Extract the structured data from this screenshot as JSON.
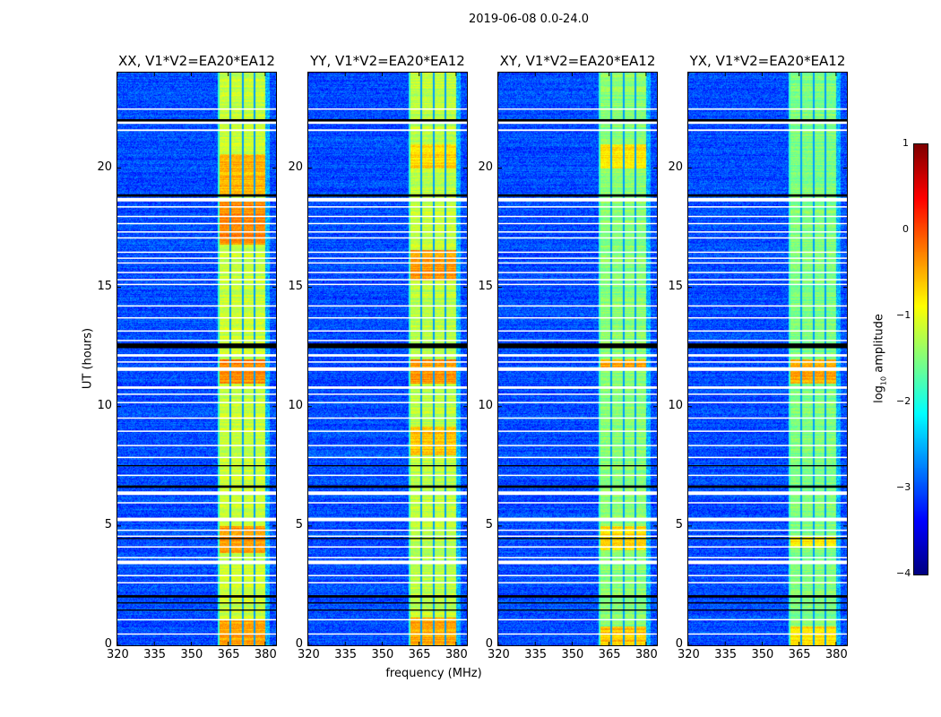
{
  "chart_data": {
    "type": "heatmap",
    "title": "2019-06-08 0.0-24.0",
    "xlabel": "frequency (MHz)",
    "ylabel": "UT (hours)",
    "xlim": [
      320,
      384.4
    ],
    "ylim": [
      0,
      24
    ],
    "xticks": [
      320,
      335,
      350,
      365,
      380
    ],
    "yticks": [
      0,
      5,
      10,
      15,
      20
    ],
    "colorbar": {
      "label_main": "log",
      "label_sub": "10",
      "label_rest": " amplitude",
      "range": [
        -4,
        1
      ],
      "ticks": [
        1,
        0,
        -1,
        -2,
        -3,
        -4
      ],
      "tick_labels": [
        "1",
        "0",
        "−1",
        "−2",
        "−3",
        "−4"
      ],
      "colormap": "jet"
    },
    "background_level": -3.0,
    "band_range_mhz": [
      360.7,
      380.0
    ],
    "band_dividers_mhz": [
      365.5,
      370.6,
      375.6
    ],
    "flagged_ut_intervals": [
      [
        22.45,
        22.5
      ],
      [
        21.85,
        22.0
      ],
      [
        21.55,
        21.62
      ],
      [
        18.6,
        18.75
      ],
      [
        18.35,
        18.4
      ],
      [
        17.95,
        18.0
      ],
      [
        17.65,
        17.7
      ],
      [
        17.3,
        17.35
      ],
      [
        17.05,
        17.1
      ],
      [
        16.45,
        16.5
      ],
      [
        16.2,
        16.25
      ],
      [
        16.0,
        16.05
      ],
      [
        15.6,
        15.65
      ],
      [
        15.3,
        15.35
      ],
      [
        15.1,
        15.15
      ],
      [
        14.2,
        14.25
      ],
      [
        13.7,
        13.75
      ],
      [
        13.15,
        13.2
      ],
      [
        12.75,
        12.8
      ],
      [
        12.1,
        12.2
      ],
      [
        11.85,
        11.9
      ],
      [
        11.5,
        11.65
      ],
      [
        10.75,
        10.85
      ],
      [
        10.5,
        10.55
      ],
      [
        10.15,
        10.2
      ],
      [
        9.5,
        9.55
      ],
      [
        8.95,
        9.0
      ],
      [
        8.35,
        8.4
      ],
      [
        7.85,
        7.9
      ],
      [
        7.1,
        7.15
      ],
      [
        6.3,
        6.45
      ],
      [
        5.95,
        6.0
      ],
      [
        5.2,
        5.35
      ],
      [
        4.8,
        4.85
      ],
      [
        4.55,
        4.6
      ],
      [
        4.1,
        4.15
      ],
      [
        3.65,
        3.7
      ],
      [
        3.4,
        3.55
      ],
      [
        2.9,
        2.95
      ],
      [
        2.6,
        2.65
      ],
      [
        1.05,
        1.1
      ],
      [
        0.45,
        0.5
      ]
    ],
    "blank_ut_intervals": [
      [
        21.95,
        22.05
      ],
      [
        18.8,
        18.9
      ],
      [
        12.45,
        12.65
      ],
      [
        7.5,
        7.55
      ],
      [
        6.6,
        6.7
      ],
      [
        4.45,
        4.5
      ],
      [
        2.0,
        2.1
      ],
      [
        1.75,
        1.8
      ],
      [
        1.45,
        1.5
      ]
    ],
    "panels": [
      {
        "title": "XX, V1*V2=EA20*EA12",
        "band_level": -1.15,
        "hot_segments": [
          [
            16.8,
            18.6,
            -0.3
          ],
          [
            18.9,
            20.6,
            -0.5
          ],
          [
            11.0,
            12.0,
            -0.3
          ],
          [
            3.9,
            5.0,
            -0.35
          ],
          [
            0.0,
            1.1,
            -0.4
          ]
        ]
      },
      {
        "title": "YY, V1*V2=EA20*EA12",
        "band_level": -1.2,
        "hot_segments": [
          [
            15.3,
            16.6,
            -0.35
          ],
          [
            20.0,
            21.0,
            -0.7
          ],
          [
            11.0,
            12.0,
            -0.35
          ],
          [
            8.0,
            9.2,
            -0.6
          ],
          [
            0.0,
            1.2,
            -0.45
          ]
        ]
      },
      {
        "title": "XY, V1*V2=EA20*EA12",
        "band_level": -1.45,
        "hot_segments": [
          [
            20.0,
            21.0,
            -0.8
          ],
          [
            11.6,
            12.0,
            -0.4
          ],
          [
            4.0,
            5.0,
            -0.7
          ],
          [
            0.0,
            0.8,
            -0.6
          ]
        ]
      },
      {
        "title": "YX, V1*V2=EA20*EA12",
        "band_level": -1.5,
        "hot_segments": [
          [
            11.0,
            12.0,
            -0.45
          ],
          [
            4.1,
            4.6,
            -0.8
          ],
          [
            0.0,
            0.8,
            -0.7
          ]
        ]
      }
    ]
  }
}
